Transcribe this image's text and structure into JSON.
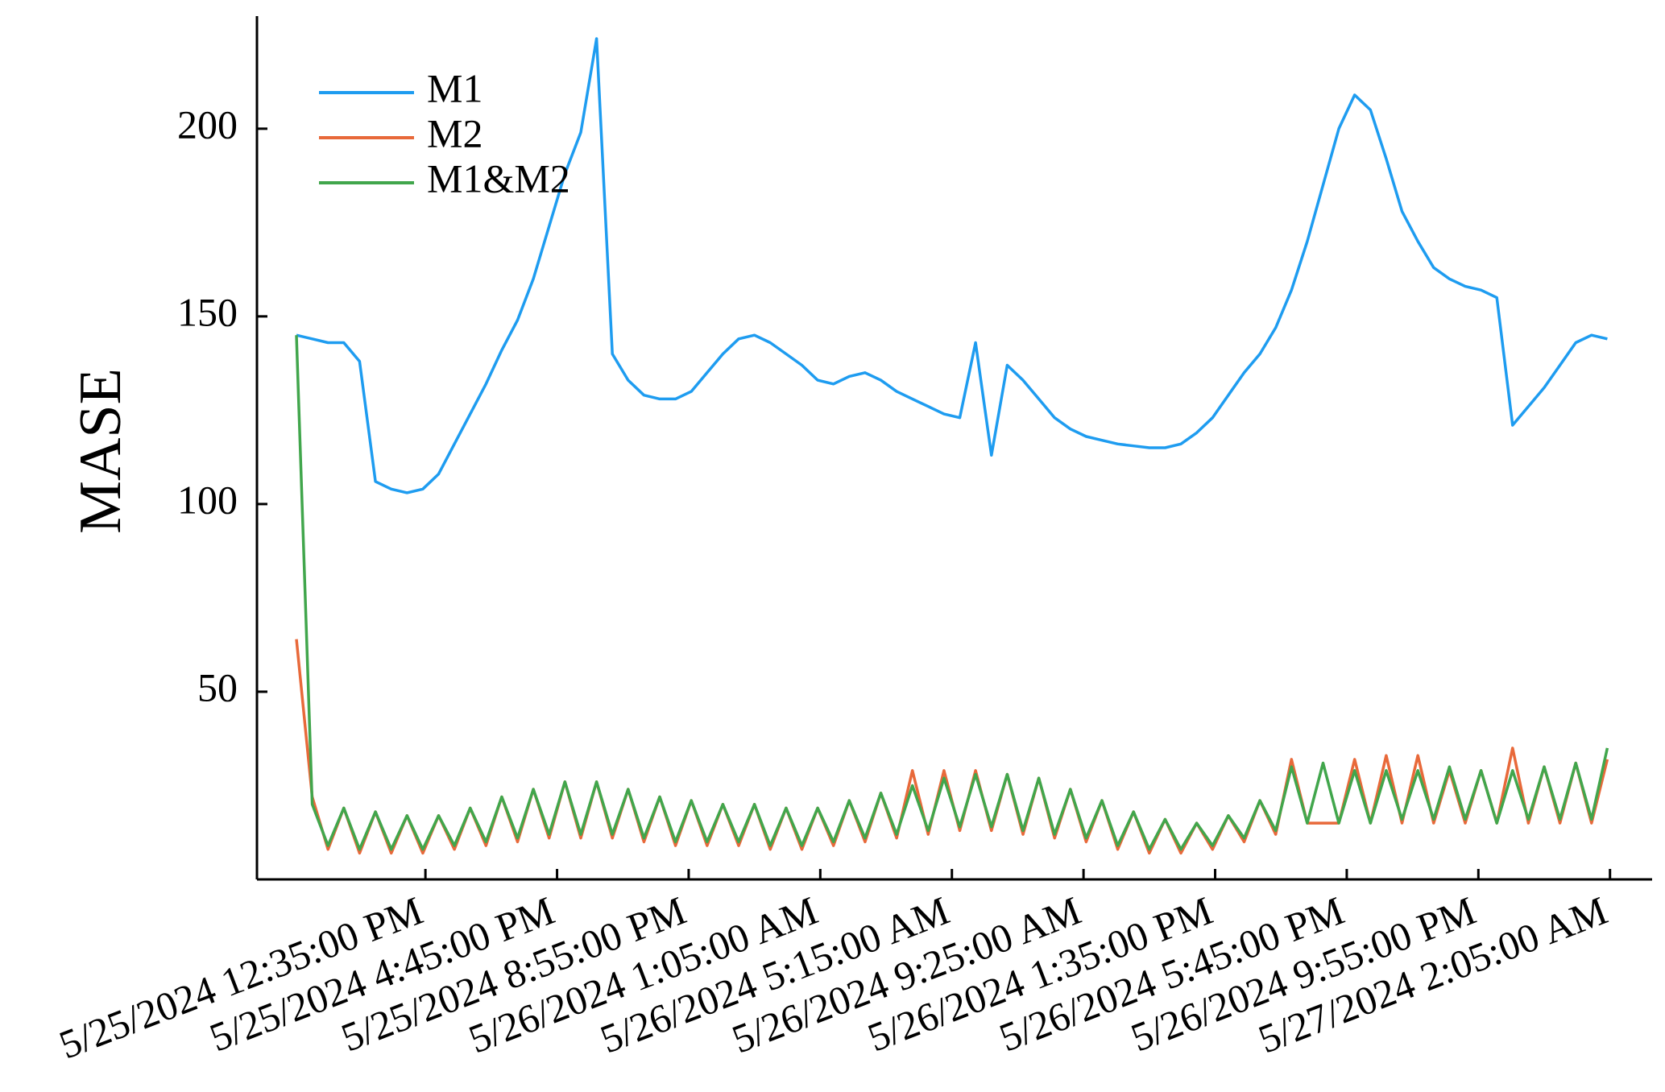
{
  "chart_data": {
    "type": "line",
    "ylabel": "MASE",
    "x": [
      "5/25/2024 8:30:00 AM",
      "5/25/2024 9:00:00 AM",
      "5/25/2024 9:30:00 AM",
      "5/25/2024 10:00:00 AM",
      "5/25/2024 10:30:00 AM",
      "5/25/2024 11:00:00 AM",
      "5/25/2024 11:30:00 AM",
      "5/25/2024 12:00:00 PM",
      "5/25/2024 12:30:00 PM",
      "5/25/2024 1:00:00 PM",
      "5/25/2024 1:30:00 PM",
      "5/25/2024 2:00:00 PM",
      "5/25/2024 2:30:00 PM",
      "5/25/2024 3:00:00 PM",
      "5/25/2024 3:30:00 PM",
      "5/25/2024 4:00:00 PM",
      "5/25/2024 4:30:00 PM",
      "5/25/2024 5:00:00 PM",
      "5/25/2024 5:30:00 PM",
      "5/25/2024 6:00:00 PM",
      "5/25/2024 6:30:00 PM",
      "5/25/2024 7:00:00 PM",
      "5/25/2024 7:30:00 PM",
      "5/25/2024 8:00:00 PM",
      "5/25/2024 8:30:00 PM",
      "5/25/2024 9:00:00 PM",
      "5/25/2024 9:30:00 PM",
      "5/25/2024 10:00:00 PM",
      "5/25/2024 10:30:00 PM",
      "5/25/2024 11:00:00 PM",
      "5/25/2024 11:30:00 PM",
      "5/26/2024 12:00:00 AM",
      "5/26/2024 12:30:00 AM",
      "5/26/2024 1:00:00 AM",
      "5/26/2024 1:30:00 AM",
      "5/26/2024 2:00:00 AM",
      "5/26/2024 2:30:00 AM",
      "5/26/2024 3:00:00 AM",
      "5/26/2024 3:30:00 AM",
      "5/26/2024 4:00:00 AM",
      "5/26/2024 4:30:00 AM",
      "5/26/2024 5:00:00 AM",
      "5/26/2024 5:30:00 AM",
      "5/26/2024 6:00:00 AM",
      "5/26/2024 6:30:00 AM",
      "5/26/2024 7:00:00 AM",
      "5/26/2024 7:30:00 AM",
      "5/26/2024 8:00:00 AM",
      "5/26/2024 8:30:00 AM",
      "5/26/2024 9:00:00 AM",
      "5/26/2024 9:30:00 AM",
      "5/26/2024 10:00:00 AM",
      "5/26/2024 10:30:00 AM",
      "5/26/2024 11:00:00 AM",
      "5/26/2024 11:30:00 AM",
      "5/26/2024 12:00:00 PM",
      "5/26/2024 12:30:00 PM",
      "5/26/2024 1:00:00 PM",
      "5/26/2024 1:30:00 PM",
      "5/26/2024 2:00:00 PM",
      "5/26/2024 2:30:00 PM",
      "5/26/2024 3:00:00 PM",
      "5/26/2024 3:30:00 PM",
      "5/26/2024 4:00:00 PM",
      "5/26/2024 4:30:00 PM",
      "5/26/2024 5:00:00 PM",
      "5/26/2024 5:30:00 PM",
      "5/26/2024 6:00:00 PM",
      "5/26/2024 6:30:00 PM",
      "5/26/2024 7:00:00 PM",
      "5/26/2024 7:30:00 PM",
      "5/26/2024 8:00:00 PM",
      "5/26/2024 8:30:00 PM",
      "5/26/2024 9:00:00 PM",
      "5/26/2024 9:30:00 PM",
      "5/26/2024 10:00:00 PM",
      "5/26/2024 10:30:00 PM",
      "5/26/2024 11:00:00 PM",
      "5/26/2024 11:30:00 PM",
      "5/27/2024 12:00:00 AM",
      "5/27/2024 12:30:00 AM",
      "5/27/2024 1:00:00 AM",
      "5/27/2024 1:30:00 AM",
      "5/27/2024 2:00:00 AM"
    ],
    "series": [
      {
        "name": "M1",
        "color": "#1e9cf0",
        "values": [
          145,
          144,
          143,
          143,
          138,
          106,
          104,
          103,
          104,
          108,
          116,
          124,
          132,
          141,
          149,
          160,
          174,
          188,
          199,
          224,
          140,
          133,
          129,
          128,
          128,
          130,
          135,
          140,
          144,
          145,
          143,
          140,
          137,
          133,
          132,
          134,
          135,
          133,
          130,
          128,
          126,
          124,
          123,
          143,
          113,
          137,
          133,
          128,
          123,
          120,
          118,
          117,
          116,
          115.5,
          115,
          115,
          116,
          119,
          123,
          129,
          135,
          140,
          147,
          157,
          170,
          185,
          200,
          209,
          205,
          192,
          178,
          170,
          163,
          160,
          158,
          157,
          155,
          121,
          126,
          131,
          137,
          143,
          145,
          144
        ]
      },
      {
        "name": "M2",
        "color": "#e8693a",
        "values": [
          64,
          22,
          8,
          19,
          7,
          18,
          7,
          17,
          7,
          17,
          8,
          19,
          9,
          22,
          10,
          24,
          11,
          26,
          11,
          26,
          11,
          24,
          10,
          22,
          9,
          21,
          9,
          20,
          9,
          20,
          8,
          19,
          8,
          19,
          9,
          21,
          10,
          23,
          11,
          29,
          12,
          29,
          13,
          29,
          13,
          28,
          12,
          27,
          11,
          24,
          10,
          21,
          8,
          18,
          7,
          16,
          7,
          15,
          8,
          17,
          10,
          21,
          12,
          32,
          15,
          15,
          15,
          32,
          15,
          33,
          15,
          33,
          15,
          29,
          15,
          29,
          15,
          35,
          15,
          30,
          15,
          31,
          15,
          32
        ]
      },
      {
        "name": "M1&M2",
        "color": "#41a64c",
        "values": [
          145,
          20,
          9,
          19,
          8,
          18,
          8,
          17,
          8,
          17,
          9,
          19,
          10,
          22,
          11,
          24,
          12,
          26,
          12,
          26,
          12,
          24,
          11,
          22,
          10,
          21,
          10,
          20,
          10,
          20,
          9,
          19,
          9,
          19,
          10,
          21,
          11,
          23,
          12,
          25,
          13,
          27,
          14,
          28,
          14,
          28,
          13,
          27,
          12,
          24,
          11,
          21,
          9,
          18,
          8,
          16,
          8,
          15,
          9,
          17,
          11,
          21,
          13,
          30,
          15,
          31,
          15,
          29,
          15,
          29,
          16,
          29,
          16,
          30,
          16,
          29,
          15,
          29,
          16,
          30,
          16,
          31,
          16,
          35
        ]
      }
    ],
    "xlim": [
      "5/25/2024 7:15:00 AM",
      "5/27/2024 3:25:00 AM"
    ],
    "xticks": [
      "5/25/2024 12:35:00 PM",
      "5/25/2024 4:45:00 PM",
      "5/25/2024 8:55:00 PM",
      "5/26/2024 1:05:00 AM",
      "5/26/2024 5:15:00 AM",
      "5/26/2024 9:25:00 AM",
      "5/26/2024 1:35:00 PM",
      "5/26/2024 5:45:00 PM",
      "5/26/2024 9:55:00 PM",
      "5/27/2024 2:05:00 AM"
    ],
    "ylim": [
      0,
      230
    ],
    "yticks": [
      50,
      100,
      150,
      200
    ],
    "legend": "upper left"
  }
}
